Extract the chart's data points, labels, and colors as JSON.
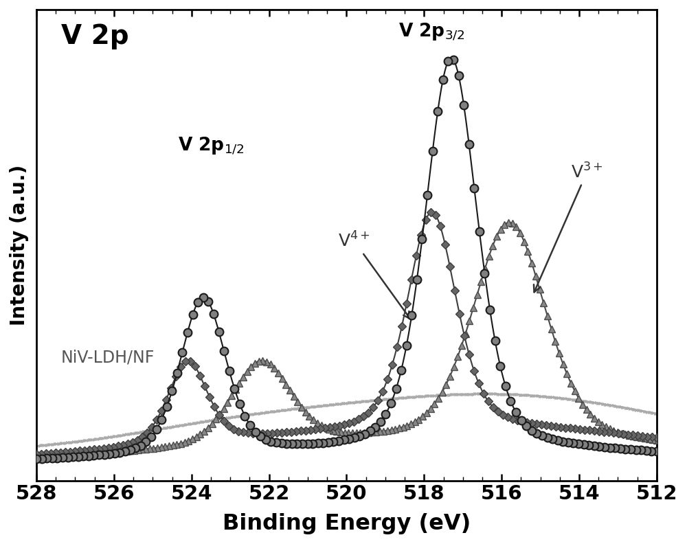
{
  "title": "V 2p",
  "xlabel": "Binding Energy (eV)",
  "ylabel": "Intensity (a.u.)",
  "xlim": [
    528,
    512
  ],
  "x_ticks": [
    528,
    526,
    524,
    522,
    520,
    518,
    516,
    514,
    512
  ],
  "label_niv": "NiV-LDH/NF",
  "bg_color": "#ffffff",
  "fig_width": 10.0,
  "fig_height": 7.92,
  "col_total": "#1a1a1a",
  "col_v4": "#3d3d3d",
  "col_v3": "#4a4a4a",
  "col_bg": "#aaaaaa"
}
